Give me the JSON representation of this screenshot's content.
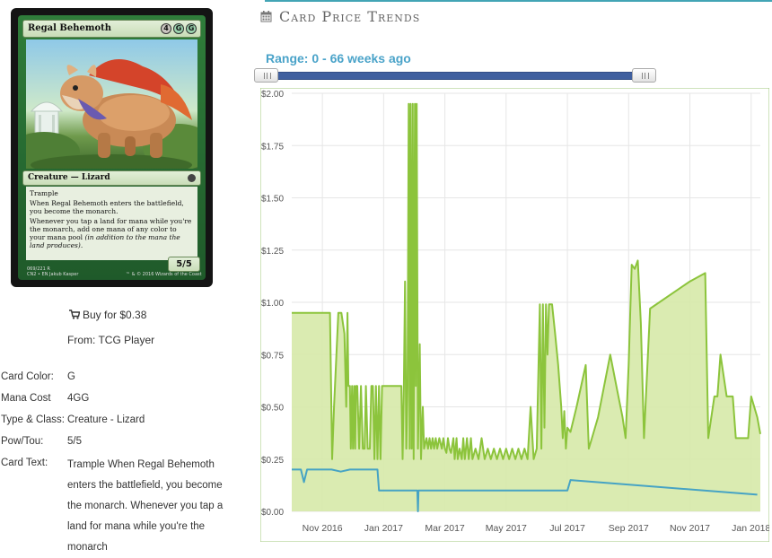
{
  "card": {
    "name": "Regal Behemoth",
    "mana_symbols": [
      "4",
      "G",
      "G"
    ],
    "type_line": "Creature — Lizard",
    "rules_text": [
      "Trample",
      "When Regal Behemoth enters the battlefield, you become the monarch.",
      "Whenever you tap a land for mana while you're the monarch, add one mana of any color to your mana pool"
    ],
    "reminder_text": "(in addition to the mana the land produces).",
    "power_toughness": "5/5",
    "collector_line": "069/221 R",
    "set_line": "CN2 • EN",
    "artist": "Jakub Kasper",
    "copyright": "™ & © 2016 Wizards of the Coast"
  },
  "buy": {
    "label": "Buy for $0.38",
    "from": "From: TCG Player"
  },
  "details": {
    "color_label": "Card Color:",
    "color_value": "G",
    "mana_label": "Mana Cost",
    "mana_value": "4GG",
    "type_label": "Type & Class:",
    "type_value": "Creature - Lizard",
    "powtou_label": "Pow/Tou:",
    "powtou_value": "5/5",
    "text_label": "Card Text:",
    "text_value": "Trample When Regal Behemoth enters the battlefield, you become the monarch. Whenever you tap a land for mana while you're the monarch"
  },
  "trends": {
    "title": "Card Price Trends",
    "range_label": "Range: 0 - 66 weeks ago"
  },
  "colors": {
    "foil_line": "#8cc43c",
    "foil_fill": "#d6e9a9",
    "normal_line": "#46a3c4",
    "accent": "#43a5b5"
  },
  "chart_data": {
    "type": "area",
    "y_ticks": [
      "$0.00",
      "$0.25",
      "$0.50",
      "$0.75",
      "$1.00",
      "$1.25",
      "$1.50",
      "$1.75",
      "$2.00"
    ],
    "ylim": [
      0,
      2.0
    ],
    "x_ticks": [
      "Nov 2016",
      "Jan 2017",
      "Mar 2017",
      "May 2017",
      "Jul 2017",
      "Sep 2017",
      "Nov 2017",
      "Jan 2018"
    ],
    "x_tick_months": [
      0,
      2,
      4,
      6,
      8,
      10,
      12,
      14
    ],
    "xlim_months": [
      -1.0,
      14.3
    ],
    "grid": true,
    "series": [
      {
        "style": "area",
        "points": [
          [
            -1.0,
            0.95
          ],
          [
            0.0,
            0.95
          ],
          [
            0.05,
            0.95
          ],
          [
            0.25,
            0.95
          ],
          [
            0.32,
            0.25
          ],
          [
            0.38,
            0.5
          ],
          [
            0.52,
            0.95
          ],
          [
            0.62,
            0.95
          ],
          [
            0.72,
            0.85
          ],
          [
            0.78,
            0.5
          ],
          [
            0.82,
            0.95
          ],
          [
            0.85,
            0.6
          ],
          [
            0.9,
            0.6
          ],
          [
            0.93,
            0.3
          ],
          [
            0.97,
            0.6
          ],
          [
            1.0,
            0.3
          ],
          [
            1.04,
            0.6
          ],
          [
            1.07,
            0.3
          ],
          [
            1.1,
            0.6
          ],
          [
            1.14,
            0.6
          ],
          [
            1.2,
            0.3
          ],
          [
            1.26,
            0.6
          ],
          [
            1.32,
            0.3
          ],
          [
            1.38,
            0.3
          ],
          [
            1.42,
            0.6
          ],
          [
            1.48,
            0.3
          ],
          [
            1.55,
            0.3
          ],
          [
            1.6,
            0.6
          ],
          [
            1.65,
            0.6
          ],
          [
            1.7,
            0.25
          ],
          [
            1.75,
            0.6
          ],
          [
            1.8,
            0.25
          ],
          [
            1.85,
            0.6
          ],
          [
            1.9,
            0.25
          ],
          [
            1.95,
            0.6
          ],
          [
            2.0,
            0.6
          ],
          [
            2.05,
            0.6
          ],
          [
            2.1,
            0.6
          ],
          [
            2.15,
            0.6
          ],
          [
            2.2,
            0.6
          ],
          [
            2.25,
            0.6
          ],
          [
            2.32,
            0.6
          ],
          [
            2.38,
            0.6
          ],
          [
            2.45,
            0.6
          ],
          [
            2.5,
            0.6
          ],
          [
            2.58,
            0.6
          ],
          [
            2.62,
            0.25
          ],
          [
            2.66,
            0.6
          ],
          [
            2.7,
            1.1
          ],
          [
            2.74,
            0.3
          ],
          [
            2.78,
            0.6
          ],
          [
            2.82,
            1.95
          ],
          [
            2.85,
            0.3
          ],
          [
            2.88,
            1.95
          ],
          [
            2.92,
            0.3
          ],
          [
            2.95,
            1.95
          ],
          [
            2.98,
            0.25
          ],
          [
            3.02,
            1.95
          ],
          [
            3.05,
            0.6
          ],
          [
            3.08,
            1.95
          ],
          [
            3.12,
            0.3
          ],
          [
            3.18,
            0.8
          ],
          [
            3.22,
            0.25
          ],
          [
            3.28,
            0.5
          ],
          [
            3.32,
            0.3
          ],
          [
            3.4,
            0.35
          ],
          [
            3.45,
            0.3
          ],
          [
            3.5,
            0.35
          ],
          [
            3.55,
            0.3
          ],
          [
            3.6,
            0.35
          ],
          [
            3.65,
            0.3
          ],
          [
            3.7,
            0.35
          ],
          [
            3.75,
            0.3
          ],
          [
            3.82,
            0.35
          ],
          [
            3.9,
            0.3
          ],
          [
            3.95,
            0.35
          ],
          [
            4.0,
            0.3
          ],
          [
            4.05,
            0.28
          ],
          [
            4.1,
            0.35
          ],
          [
            4.15,
            0.3
          ],
          [
            4.2,
            0.28
          ],
          [
            4.28,
            0.35
          ],
          [
            4.32,
            0.25
          ],
          [
            4.38,
            0.35
          ],
          [
            4.42,
            0.25
          ],
          [
            4.48,
            0.3
          ],
          [
            4.55,
            0.25
          ],
          [
            4.6,
            0.35
          ],
          [
            4.65,
            0.25
          ],
          [
            4.72,
            0.35
          ],
          [
            4.78,
            0.25
          ],
          [
            4.85,
            0.35
          ],
          [
            4.9,
            0.25
          ],
          [
            5.0,
            0.3
          ],
          [
            5.1,
            0.25
          ],
          [
            5.2,
            0.35
          ],
          [
            5.3,
            0.25
          ],
          [
            5.4,
            0.3
          ],
          [
            5.5,
            0.25
          ],
          [
            5.6,
            0.3
          ],
          [
            5.7,
            0.25
          ],
          [
            5.8,
            0.3
          ],
          [
            5.9,
            0.25
          ],
          [
            6.0,
            0.3
          ],
          [
            6.1,
            0.25
          ],
          [
            6.2,
            0.3
          ],
          [
            6.3,
            0.25
          ],
          [
            6.4,
            0.3
          ],
          [
            6.5,
            0.25
          ],
          [
            6.6,
            0.3
          ],
          [
            6.7,
            0.25
          ],
          [
            6.8,
            0.5
          ],
          [
            6.9,
            0.25
          ],
          [
            7.0,
            0.3
          ],
          [
            7.1,
            0.99
          ],
          [
            7.15,
            0.3
          ],
          [
            7.2,
            0.99
          ],
          [
            7.25,
            0.4
          ],
          [
            7.3,
            0.99
          ],
          [
            7.35,
            0.75
          ],
          [
            7.4,
            0.99
          ],
          [
            7.5,
            0.99
          ],
          [
            7.6,
            0.85
          ],
          [
            7.7,
            0.7
          ],
          [
            7.8,
            0.5
          ],
          [
            7.85,
            0.35
          ],
          [
            7.9,
            0.48
          ],
          [
            7.95,
            0.3
          ],
          [
            8.0,
            0.4
          ],
          [
            8.1,
            0.38
          ],
          [
            8.3,
            0.5
          ],
          [
            8.6,
            0.7
          ],
          [
            8.7,
            0.3
          ],
          [
            8.8,
            0.35
          ],
          [
            9.0,
            0.45
          ],
          [
            9.2,
            0.6
          ],
          [
            9.4,
            0.75
          ],
          [
            9.6,
            0.6
          ],
          [
            9.8,
            0.45
          ],
          [
            9.9,
            0.35
          ],
          [
            10.0,
            0.7
          ],
          [
            10.1,
            1.18
          ],
          [
            10.2,
            1.16
          ],
          [
            10.3,
            1.2
          ],
          [
            10.4,
            0.9
          ],
          [
            10.5,
            0.35
          ],
          [
            10.7,
            0.97
          ],
          [
            12.0,
            1.1
          ],
          [
            12.5,
            1.14
          ],
          [
            12.6,
            0.35
          ],
          [
            12.8,
            0.55
          ],
          [
            12.9,
            0.55
          ],
          [
            13.0,
            0.75
          ],
          [
            13.2,
            0.55
          ],
          [
            13.4,
            0.55
          ],
          [
            13.5,
            0.35
          ],
          [
            13.9,
            0.35
          ],
          [
            14.0,
            0.55
          ],
          [
            14.2,
            0.45
          ],
          [
            14.3,
            0.37
          ]
        ]
      },
      {
        "style": "line",
        "points": [
          [
            -1.0,
            0.2
          ],
          [
            -0.7,
            0.2
          ],
          [
            -0.6,
            0.14
          ],
          [
            -0.5,
            0.2
          ],
          [
            0.3,
            0.2
          ],
          [
            0.6,
            0.19
          ],
          [
            0.9,
            0.2
          ],
          [
            1.8,
            0.2
          ],
          [
            1.85,
            0.1
          ],
          [
            3.0,
            0.1
          ],
          [
            3.1,
            0.1
          ],
          [
            3.12,
            0.0
          ],
          [
            3.14,
            0.1
          ],
          [
            8.0,
            0.1
          ],
          [
            8.1,
            0.15
          ],
          [
            14.2,
            0.08
          ]
        ]
      }
    ]
  }
}
